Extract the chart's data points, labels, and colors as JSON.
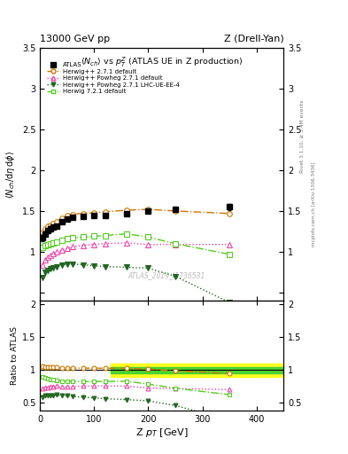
{
  "title_left": "13000 GeV pp",
  "title_right": "Z (Drell-Yan)",
  "plot_title": "<N_{ch}> vs p^{Z}_{T} (ATLAS UE in Z production)",
  "xlabel": "Z p_{T} [GeV]",
  "ylabel_main": "<N_{ch}/d#eta d#phi>",
  "ylabel_ratio": "Ratio to ATLAS",
  "watermark": "ATLAS_2019_I1736531",
  "right_label1": "Rivet 3.1.10, ≥ 3.4M events",
  "right_label2": "mcplots.cern.ch [arXiv:1306.3436]",
  "atlas_x": [
    5,
    10,
    15,
    20,
    25,
    30,
    40,
    50,
    60,
    80,
    100,
    120,
    160,
    200,
    250,
    350
  ],
  "atlas_y": [
    1.17,
    1.22,
    1.26,
    1.28,
    1.3,
    1.32,
    1.37,
    1.4,
    1.42,
    1.43,
    1.44,
    1.45,
    1.47,
    1.5,
    1.52,
    1.55
  ],
  "atlas_yerr": [
    0.04,
    0.03,
    0.02,
    0.02,
    0.02,
    0.02,
    0.02,
    0.02,
    0.02,
    0.02,
    0.02,
    0.02,
    0.02,
    0.02,
    0.02,
    0.04
  ],
  "hw271_x": [
    5,
    10,
    15,
    20,
    25,
    30,
    40,
    50,
    60,
    80,
    100,
    120,
    160,
    200,
    250,
    350
  ],
  "hw271_y": [
    1.24,
    1.28,
    1.31,
    1.33,
    1.35,
    1.37,
    1.41,
    1.44,
    1.46,
    1.47,
    1.48,
    1.49,
    1.51,
    1.52,
    1.5,
    1.47
  ],
  "hw271_color": "#cc7700",
  "hw271_label": "Herwig++ 2.7.1 default",
  "hwp271_x": [
    5,
    10,
    15,
    20,
    25,
    30,
    40,
    50,
    60,
    80,
    100,
    120,
    160,
    200,
    250,
    350
  ],
  "hwp271_y": [
    0.84,
    0.9,
    0.93,
    0.96,
    0.98,
    1.0,
    1.02,
    1.04,
    1.06,
    1.08,
    1.09,
    1.1,
    1.11,
    1.09,
    1.09,
    1.09
  ],
  "hwp271_color": "#ee44aa",
  "hwp271_label": "Herwig++ Powheg 2.7.1 default",
  "hwp271lhc_x": [
    5,
    10,
    15,
    20,
    25,
    30,
    40,
    50,
    60,
    80,
    100,
    120,
    160,
    200,
    250,
    350
  ],
  "hwp271lhc_y": [
    0.69,
    0.75,
    0.77,
    0.79,
    0.8,
    0.82,
    0.84,
    0.85,
    0.85,
    0.84,
    0.83,
    0.82,
    0.81,
    0.8,
    0.7,
    0.38
  ],
  "hwp271lhc_color": "#226622",
  "hwp271lhc_label": "Herwig++ Powheg 2.7.1 LHC-UE-EE-4",
  "hw721_x": [
    5,
    10,
    15,
    20,
    25,
    30,
    40,
    50,
    60,
    80,
    100,
    120,
    160,
    200,
    250,
    350
  ],
  "hw721_y": [
    1.05,
    1.08,
    1.09,
    1.1,
    1.11,
    1.12,
    1.14,
    1.16,
    1.17,
    1.18,
    1.19,
    1.2,
    1.22,
    1.18,
    1.1,
    0.97
  ],
  "hw721_color": "#55cc22",
  "hw721_label": "Herwig 7.2.1 default",
  "xlim": [
    0,
    450
  ],
  "ylim_main": [
    0.4,
    3.5
  ],
  "ylim_ratio": [
    0.38,
    2.05
  ],
  "band_xstart": 130,
  "band_green_lo": 0.95,
  "band_green_hi": 1.05,
  "band_yellow_lo": 0.9,
  "band_yellow_hi": 1.1
}
